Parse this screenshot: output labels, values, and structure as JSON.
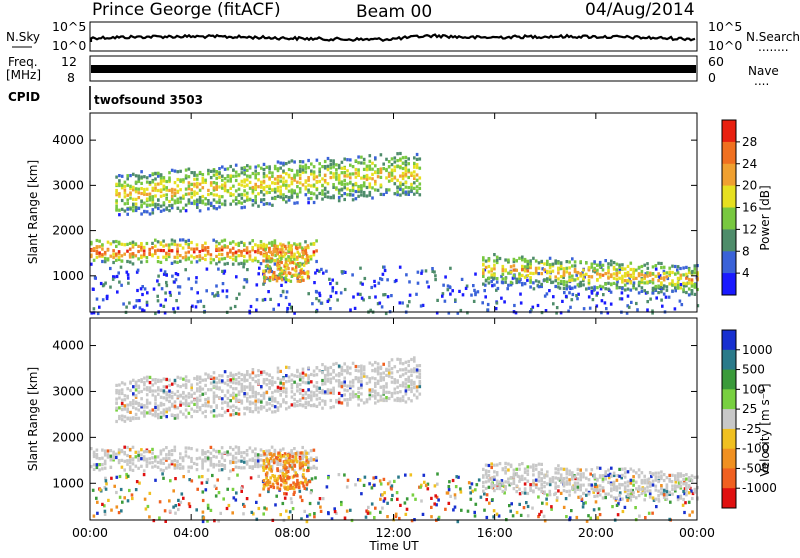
{
  "header": {
    "station": "Prince George (fitACF)",
    "beam": "Beam 00",
    "date": "04/Aug/2014"
  },
  "strip_panels": {
    "noise": {
      "left_label": "N.Sky",
      "left_ticks": [
        "10^5",
        "10^0"
      ],
      "right_ticks": [
        "10^5",
        "10^0"
      ],
      "right_label": "N.Search",
      "right_dots": "........"
    },
    "freq": {
      "left_label_1": "Freq.",
      "left_label_2": "[MHz]",
      "left_ticks": [
        "12",
        "8"
      ],
      "right_ticks": [
        "60",
        "0"
      ],
      "right_label": "Nave",
      "right_dots": "...."
    },
    "cpid": {
      "label": "CPID",
      "value": "twofsound 3503"
    }
  },
  "chart_data": [
    {
      "type": "heatmap",
      "quantity": "Power",
      "ylabel": "Slant Range [km]",
      "ylim": [
        200,
        4600
      ],
      "yticks": [
        "1000",
        "2000",
        "3000",
        "4000"
      ],
      "xlabel": "",
      "colorbar": {
        "label": "Power [dB]",
        "ticks": [
          "4",
          "8",
          "12",
          "16",
          "20",
          "24",
          "28"
        ],
        "colors": [
          "#1a1aff",
          "#3a62d8",
          "#4e8c6a",
          "#78c840",
          "#e6e020",
          "#f0a030",
          "#f07020",
          "#e82010"
        ]
      },
      "bands": [
        {
          "name": "low-range band",
          "start_h": 0,
          "end_h": 9,
          "range_start_km": 1350,
          "range_end_km": 1800,
          "peak_db": 28
        },
        {
          "name": "upper band",
          "start_h": 1,
          "end_h": 13,
          "range_start_km": 2400,
          "range_end_km": 3300,
          "peak_db": 20
        },
        {
          "name": "evening band",
          "start_h": 15.5,
          "end_h": 24,
          "range_start_km": 900,
          "range_end_km": 1500,
          "peak_db": 22
        }
      ]
    },
    {
      "type": "heatmap",
      "quantity": "Velocity",
      "ylabel": "Slant Range [km]",
      "ylim": [
        200,
        4600
      ],
      "yticks": [
        "1000",
        "2000",
        "3000",
        "4000"
      ],
      "xlabel": "Time UT",
      "xticks": [
        "00:00",
        "04:00",
        "08:00",
        "12:00",
        "16:00",
        "20:00",
        "00:00"
      ],
      "colorbar": {
        "label": "Velocity [m s⁻¹]",
        "ticks": [
          "1000",
          "500",
          "100",
          "25",
          "-25",
          "-100",
          "-500",
          "-1000"
        ],
        "colors": [
          "#1830d0",
          "#2a7a8a",
          "#3a9a3a",
          "#78d040",
          "#c8c8c8",
          "#f0c020",
          "#f09020",
          "#f06020",
          "#e01010"
        ]
      },
      "dominant": "ground scatter (grey, |v| < 25 m/s) with negative velocities near 08:00"
    }
  ]
}
